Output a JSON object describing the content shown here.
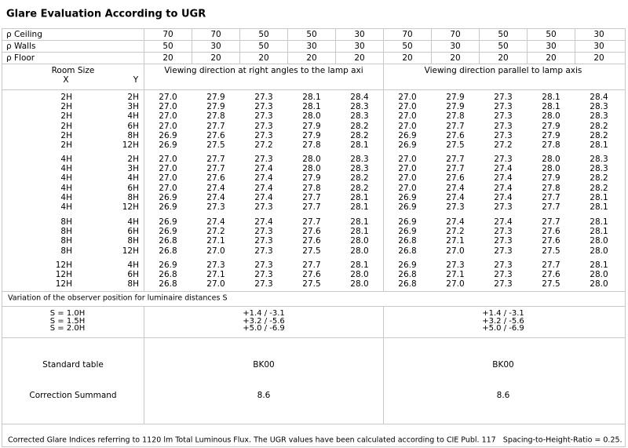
{
  "header": {
    "title": "Glare Evaluation According to UGR"
  },
  "reflectance": {
    "rows": [
      {
        "label": "ρ Ceiling",
        "values": [
          "70",
          "70",
          "50",
          "50",
          "30",
          "70",
          "70",
          "50",
          "50",
          "30"
        ]
      },
      {
        "label": "ρ Walls",
        "values": [
          "50",
          "30",
          "50",
          "30",
          "30",
          "50",
          "30",
          "50",
          "30",
          "30"
        ]
      },
      {
        "label": "ρ Floor",
        "values": [
          "20",
          "20",
          "20",
          "20",
          "20",
          "20",
          "20",
          "20",
          "20",
          "20"
        ]
      }
    ]
  },
  "table": {
    "room_size": "Room Size",
    "x": "X",
    "y": "Y",
    "direction_right_angles": "Viewing direction at right angles to the lamp axi",
    "direction_parallel": "Viewing direction parallel to lamp axis",
    "groups": [
      [
        {
          "x": "2H",
          "y": "2H",
          "perpendicular": [
            "27.0",
            "27.9",
            "27.3",
            "28.1",
            "28.4"
          ],
          "parallel": [
            "27.0",
            "27.9",
            "27.3",
            "28.1",
            "28.4"
          ]
        },
        {
          "x": "2H",
          "y": "3H",
          "perpendicular": [
            "27.0",
            "27.9",
            "27.3",
            "28.1",
            "28.3"
          ],
          "parallel": [
            "27.0",
            "27.9",
            "27.3",
            "28.1",
            "28.3"
          ]
        },
        {
          "x": "2H",
          "y": "4H",
          "perpendicular": [
            "27.0",
            "27.8",
            "27.3",
            "28.0",
            "28.3"
          ],
          "parallel": [
            "27.0",
            "27.8",
            "27.3",
            "28.0",
            "28.3"
          ]
        },
        {
          "x": "2H",
          "y": "6H",
          "perpendicular": [
            "27.0",
            "27.7",
            "27.3",
            "27.9",
            "28.2"
          ],
          "parallel": [
            "27.0",
            "27.7",
            "27.3",
            "27.9",
            "28.2"
          ]
        },
        {
          "x": "2H",
          "y": "8H",
          "perpendicular": [
            "26.9",
            "27.6",
            "27.3",
            "27.9",
            "28.2"
          ],
          "parallel": [
            "26.9",
            "27.6",
            "27.3",
            "27.9",
            "28.2"
          ]
        },
        {
          "x": "2H",
          "y": "12H",
          "perpendicular": [
            "26.9",
            "27.5",
            "27.2",
            "27.8",
            "28.1"
          ],
          "parallel": [
            "26.9",
            "27.5",
            "27.2",
            "27.8",
            "28.1"
          ]
        }
      ],
      [
        {
          "x": "4H",
          "y": "2H",
          "perpendicular": [
            "27.0",
            "27.7",
            "27.3",
            "28.0",
            "28.3"
          ],
          "parallel": [
            "27.0",
            "27.7",
            "27.3",
            "28.0",
            "28.3"
          ]
        },
        {
          "x": "4H",
          "y": "3H",
          "perpendicular": [
            "27.0",
            "27.7",
            "27.4",
            "28.0",
            "28.3"
          ],
          "parallel": [
            "27.0",
            "27.7",
            "27.4",
            "28.0",
            "28.3"
          ]
        },
        {
          "x": "4H",
          "y": "4H",
          "perpendicular": [
            "27.0",
            "27.6",
            "27.4",
            "27.9",
            "28.2"
          ],
          "parallel": [
            "27.0",
            "27.6",
            "27.4",
            "27.9",
            "28.2"
          ]
        },
        {
          "x": "4H",
          "y": "6H",
          "perpendicular": [
            "27.0",
            "27.4",
            "27.4",
            "27.8",
            "28.2"
          ],
          "parallel": [
            "27.0",
            "27.4",
            "27.4",
            "27.8",
            "28.2"
          ]
        },
        {
          "x": "4H",
          "y": "8H",
          "perpendicular": [
            "26.9",
            "27.4",
            "27.4",
            "27.7",
            "28.1"
          ],
          "parallel": [
            "26.9",
            "27.4",
            "27.4",
            "27.7",
            "28.1"
          ]
        },
        {
          "x": "4H",
          "y": "12H",
          "perpendicular": [
            "26.9",
            "27.3",
            "27.3",
            "27.7",
            "28.1"
          ],
          "parallel": [
            "26.9",
            "27.3",
            "27.3",
            "27.7",
            "28.1"
          ]
        }
      ],
      [
        {
          "x": "8H",
          "y": "4H",
          "perpendicular": [
            "26.9",
            "27.4",
            "27.4",
            "27.7",
            "28.1"
          ],
          "parallel": [
            "26.9",
            "27.4",
            "27.4",
            "27.7",
            "28.1"
          ]
        },
        {
          "x": "8H",
          "y": "6H",
          "perpendicular": [
            "26.9",
            "27.2",
            "27.3",
            "27.6",
            "28.1"
          ],
          "parallel": [
            "26.9",
            "27.2",
            "27.3",
            "27.6",
            "28.1"
          ]
        },
        {
          "x": "8H",
          "y": "8H",
          "perpendicular": [
            "26.8",
            "27.1",
            "27.3",
            "27.6",
            "28.0"
          ],
          "parallel": [
            "26.8",
            "27.1",
            "27.3",
            "27.6",
            "28.0"
          ]
        },
        {
          "x": "8H",
          "y": "12H",
          "perpendicular": [
            "26.8",
            "27.0",
            "27.3",
            "27.5",
            "28.0"
          ],
          "parallel": [
            "26.8",
            "27.0",
            "27.3",
            "27.5",
            "28.0"
          ]
        }
      ],
      [
        {
          "x": "12H",
          "y": "4H",
          "perpendicular": [
            "26.9",
            "27.3",
            "27.3",
            "27.7",
            "28.1"
          ],
          "parallel": [
            "26.9",
            "27.3",
            "27.3",
            "27.7",
            "28.1"
          ]
        },
        {
          "x": "12H",
          "y": "6H",
          "perpendicular": [
            "26.8",
            "27.1",
            "27.3",
            "27.6",
            "28.0"
          ],
          "parallel": [
            "26.8",
            "27.1",
            "27.3",
            "27.6",
            "28.0"
          ]
        },
        {
          "x": "12H",
          "y": "8H",
          "perpendicular": [
            "26.8",
            "27.0",
            "27.3",
            "27.5",
            "28.0"
          ],
          "parallel": [
            "26.8",
            "27.0",
            "27.3",
            "27.5",
            "28.0"
          ]
        }
      ]
    ]
  },
  "variation": {
    "title": "Variation of the observer position for luminaire distances S",
    "rows": [
      {
        "s": "S = 1.0H",
        "perpendicular": "+1.4 / -3.1",
        "parallel": "+1.4 / -3.1"
      },
      {
        "s": "S = 1.5H",
        "perpendicular": "+3.2 / -5.6",
        "parallel": "+3.2 / -5.6"
      },
      {
        "s": "S = 2.0H",
        "perpendicular": "+5.0 / -6.9",
        "parallel": "+5.0 / -6.9"
      }
    ]
  },
  "standard_table": {
    "label": "Standard table",
    "perpendicular": "BK00",
    "parallel": "BK00"
  },
  "correction_summand": {
    "label": "Correction Summand",
    "perpendicular": "8.6",
    "parallel": "8.6"
  },
  "footer": {
    "note": "Corrected Glare Indices referring to 1120 lm Total Luminous Flux. The UGR values have been calculated according to CIE Publ. 117   Spacing-to-Height-Ratio = 0.25."
  }
}
